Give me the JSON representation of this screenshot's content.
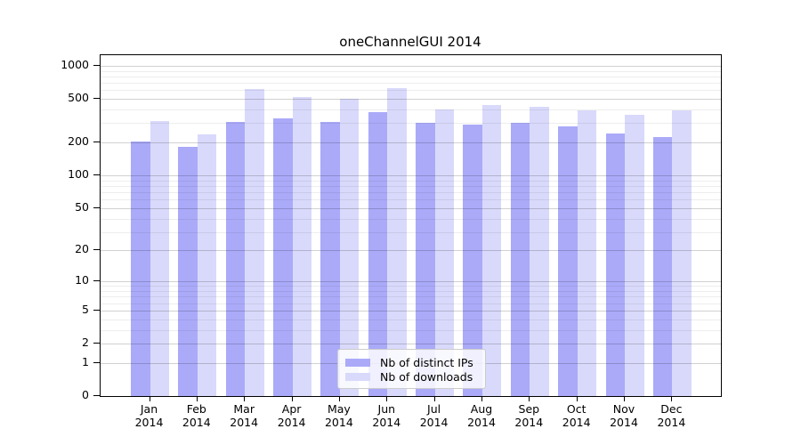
{
  "title": "oneChannelGUI 2014",
  "y_axis": {
    "tick_values": [
      0,
      1,
      2,
      5,
      10,
      20,
      50,
      100,
      200,
      500,
      1000
    ],
    "grid_minor": [
      3,
      4,
      6,
      7,
      8,
      9,
      30,
      40,
      60,
      70,
      80,
      90,
      300,
      400,
      600,
      700,
      800,
      900
    ],
    "scale": "log10(1+x)"
  },
  "x_axis": {
    "months": [
      "Jan",
      "Feb",
      "Mar",
      "Apr",
      "May",
      "Jun",
      "Jul",
      "Aug",
      "Sep",
      "Oct",
      "Nov",
      "Dec"
    ],
    "year": "2014"
  },
  "legend": {
    "labels": [
      "Nb of distinct IPs",
      "Nb of downloads"
    ]
  },
  "colors": {
    "ips_bar": "#aaaaf9",
    "downloads_bar": "#d9d9fb",
    "axis": "#000000",
    "grid_major": "rgba(0,0,0,0.18)",
    "grid_minor": "rgba(0,0,0,0.07)",
    "legend_border": "#cccccc",
    "background": "#ffffff"
  },
  "chart_data": {
    "type": "bar",
    "categories": [
      "Jan 2014",
      "Feb 2014",
      "Mar 2014",
      "Apr 2014",
      "May 2014",
      "Jun 2014",
      "Jul 2014",
      "Aug 2014",
      "Sep 2014",
      "Oct 2014",
      "Nov 2014",
      "Dec 2014"
    ],
    "series": [
      {
        "name": "Nb of distinct IPs",
        "color": "#aaaaf9",
        "values": [
          205,
          183,
          310,
          335,
          308,
          375,
          300,
          293,
          302,
          280,
          243,
          225
        ]
      },
      {
        "name": "Nb of downloads",
        "color": "#d9d9fb",
        "values": [
          315,
          238,
          615,
          520,
          500,
          630,
          400,
          440,
          425,
          395,
          355,
          390
        ]
      }
    ],
    "title": "oneChannelGUI 2014",
    "xlabel": "",
    "ylabel": "",
    "y_ticks": [
      0,
      1,
      2,
      5,
      10,
      20,
      50,
      100,
      200,
      500,
      1000
    ],
    "y_scale": "log10(1+x)",
    "ylim": [
      0,
      1050
    ],
    "grid": true,
    "legend_position": "inside-bottom-center"
  }
}
